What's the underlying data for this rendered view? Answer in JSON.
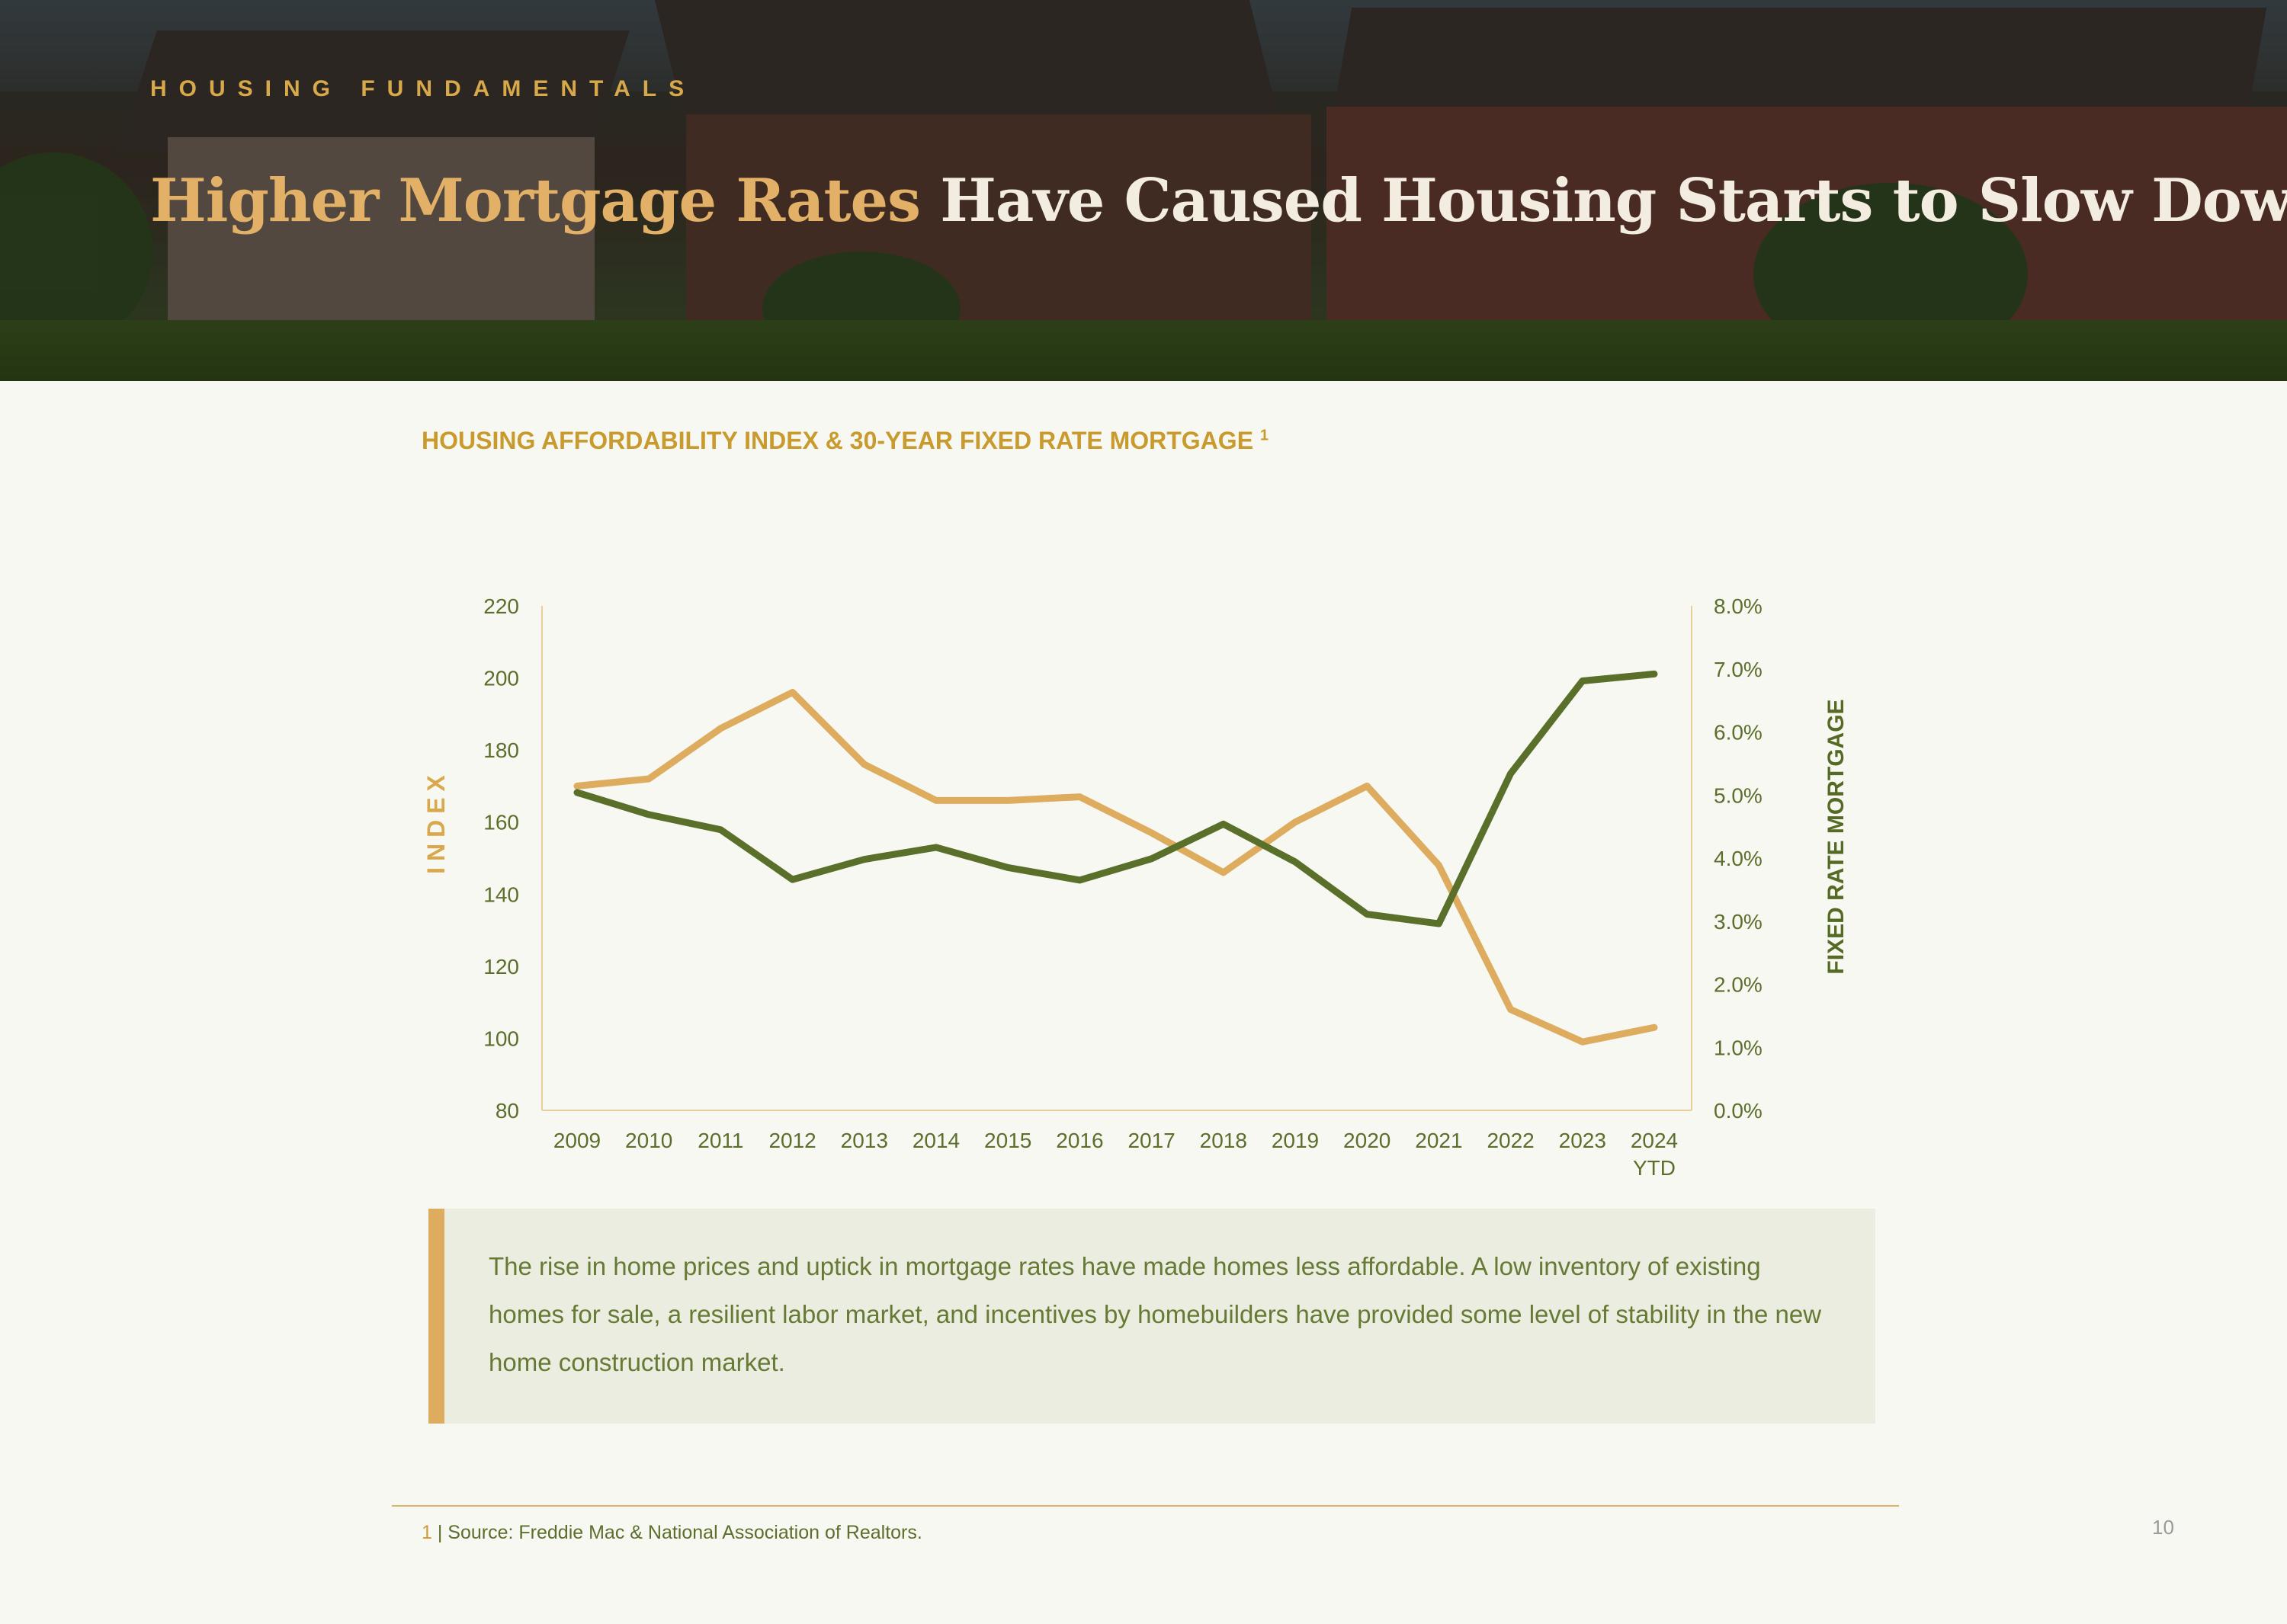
{
  "header": {
    "eyebrow": "HOUSING FUNDAMENTALS",
    "title_accent": "Higher Mortgage Rates",
    "title_rest": " Have Caused Housing Starts to Slow Down"
  },
  "chart_title": {
    "text": "HOUSING AFFORDABILITY INDEX & 30-YEAR FIXED RATE MORTGAGE",
    "superscript": "1"
  },
  "colors": {
    "accent_gold": "#ddac5e",
    "series_green": "#5a6f2a",
    "text_green": "#5b6e2c",
    "title_gold": "#c99a2e"
  },
  "chart_data": {
    "type": "line",
    "x": [
      "2009",
      "2010",
      "2011",
      "2012",
      "2013",
      "2014",
      "2015",
      "2016",
      "2017",
      "2018",
      "2019",
      "2020",
      "2021",
      "2022",
      "2023",
      "2024\nYTD"
    ],
    "series": [
      {
        "axis": "left",
        "color": "#ddac5e",
        "values": [
          170,
          172,
          186,
          196,
          176,
          166,
          166,
          167,
          157,
          146,
          160,
          170,
          148,
          108,
          99,
          103
        ]
      },
      {
        "axis": "right",
        "color": "#5a6f2a",
        "values": [
          5.04,
          4.69,
          4.45,
          3.66,
          3.98,
          4.17,
          3.85,
          3.65,
          3.99,
          4.54,
          3.94,
          3.11,
          2.96,
          5.34,
          6.81,
          6.92
        ]
      }
    ],
    "y_left": {
      "label": "INDEX",
      "range": [
        80,
        220
      ],
      "ticks": [
        "220",
        "200",
        "180",
        "160",
        "140",
        "120",
        "100",
        "80"
      ]
    },
    "y_right": {
      "label": "FIXED RATE MORTGAGE",
      "range": [
        0,
        8
      ],
      "ticks": [
        "8.0%",
        "7.0%",
        "6.0%",
        "5.0%",
        "4.0%",
        "3.0%",
        "2.0%",
        "1.0%",
        "0.0%"
      ]
    },
    "grid": false,
    "legend": "none"
  },
  "callout": {
    "text": "The rise in home prices and uptick in mortgage rates have made homes less affordable. A low inventory of existing homes for sale, a resilient labor market, and incentives by homebuilders have provided some level of stability in the new home construction market."
  },
  "footnote": {
    "number": "1",
    "text": " | Source: Freddie Mac & National Association of Realtors."
  },
  "page_number": "10"
}
